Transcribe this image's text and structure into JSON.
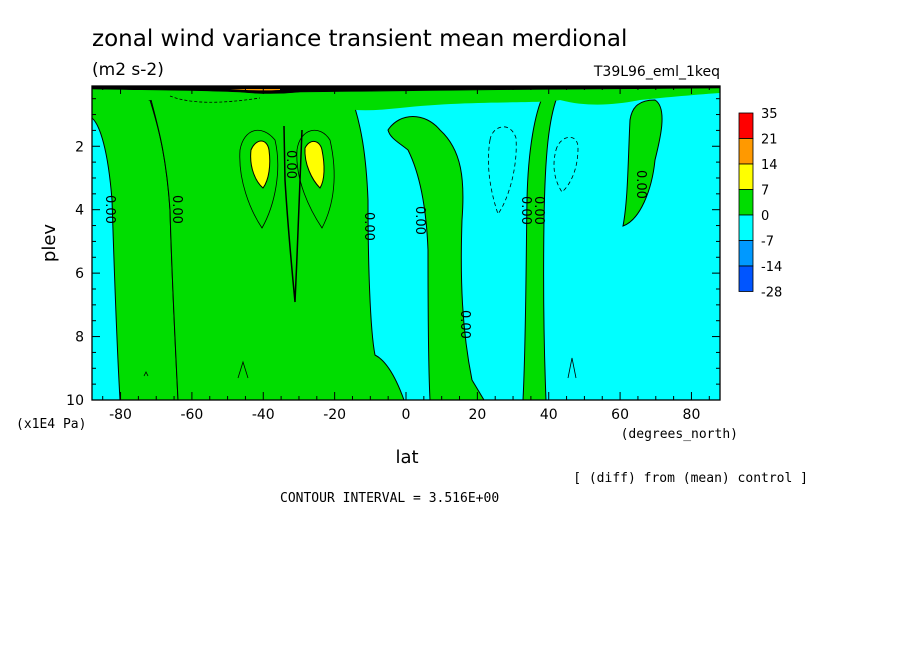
{
  "chart_data": {
    "type": "heatmap",
    "title": "zonal wind variance transient mean merdional",
    "units": "(m2 s-2)",
    "run_label": "T39L96_eml_1keq",
    "xlabel": "lat",
    "x_units": "(degrees_north)",
    "ylabel": "plev",
    "y_units": "(x1E4 Pa)",
    "x_ticks": [
      -80,
      -60,
      -40,
      -20,
      0,
      20,
      40,
      60,
      80
    ],
    "y_ticks": [
      2,
      4,
      6,
      8,
      10
    ],
    "xlim": [
      -88,
      88
    ],
    "ylim": [
      0.1,
      10
    ],
    "y_inverted": true,
    "contour_interval_text": "CONTOUR INTERVAL = 3.516E+00",
    "note": "[ (diff) from (mean) control ]",
    "zero_contour_label": "0.00",
    "colorbar": {
      "levels": [
        "35",
        "21",
        "14",
        "7",
        "0",
        "-7",
        "-14",
        "-28"
      ],
      "colors": [
        "#ff0000",
        "#ff9900",
        "#ffff00",
        "#00dd00",
        "#00ffff",
        "#0099ff",
        "#0055ff"
      ]
    },
    "regions": [
      {
        "sign": "negative",
        "lat_range": [
          -88,
          -84
        ],
        "color": "#00ffff"
      },
      {
        "sign": "positive",
        "lat_range": [
          -84,
          -67
        ],
        "color": "#00dd00"
      },
      {
        "sign": "negative",
        "lat_range": [
          -72,
          -62
        ],
        "color": "#00ffff"
      },
      {
        "sign": "positive",
        "lat_range": [
          -62,
          -12
        ],
        "color": "#00dd00"
      },
      {
        "sign": "negative",
        "lat_range": [
          -12,
          8
        ],
        "color": "#00ffff"
      },
      {
        "sign": "positive",
        "lat_range": [
          0,
          20
        ],
        "color": "#00dd00"
      },
      {
        "sign": "negative",
        "lat_range": [
          20,
          33
        ],
        "color": "#00ffff"
      },
      {
        "sign": "positive",
        "lat_range": [
          33,
          37
        ],
        "color": "#00dd00"
      },
      {
        "sign": "negative",
        "lat_range": [
          37,
          88
        ],
        "color": "#00ffff"
      }
    ],
    "maxima": [
      {
        "lat": -41,
        "plev": 2.6,
        "range": "7 to 14",
        "color": "#ffff00"
      },
      {
        "lat": -26,
        "plev": 2.6,
        "range": "7 to 14",
        "color": "#ffff00"
      }
    ]
  }
}
